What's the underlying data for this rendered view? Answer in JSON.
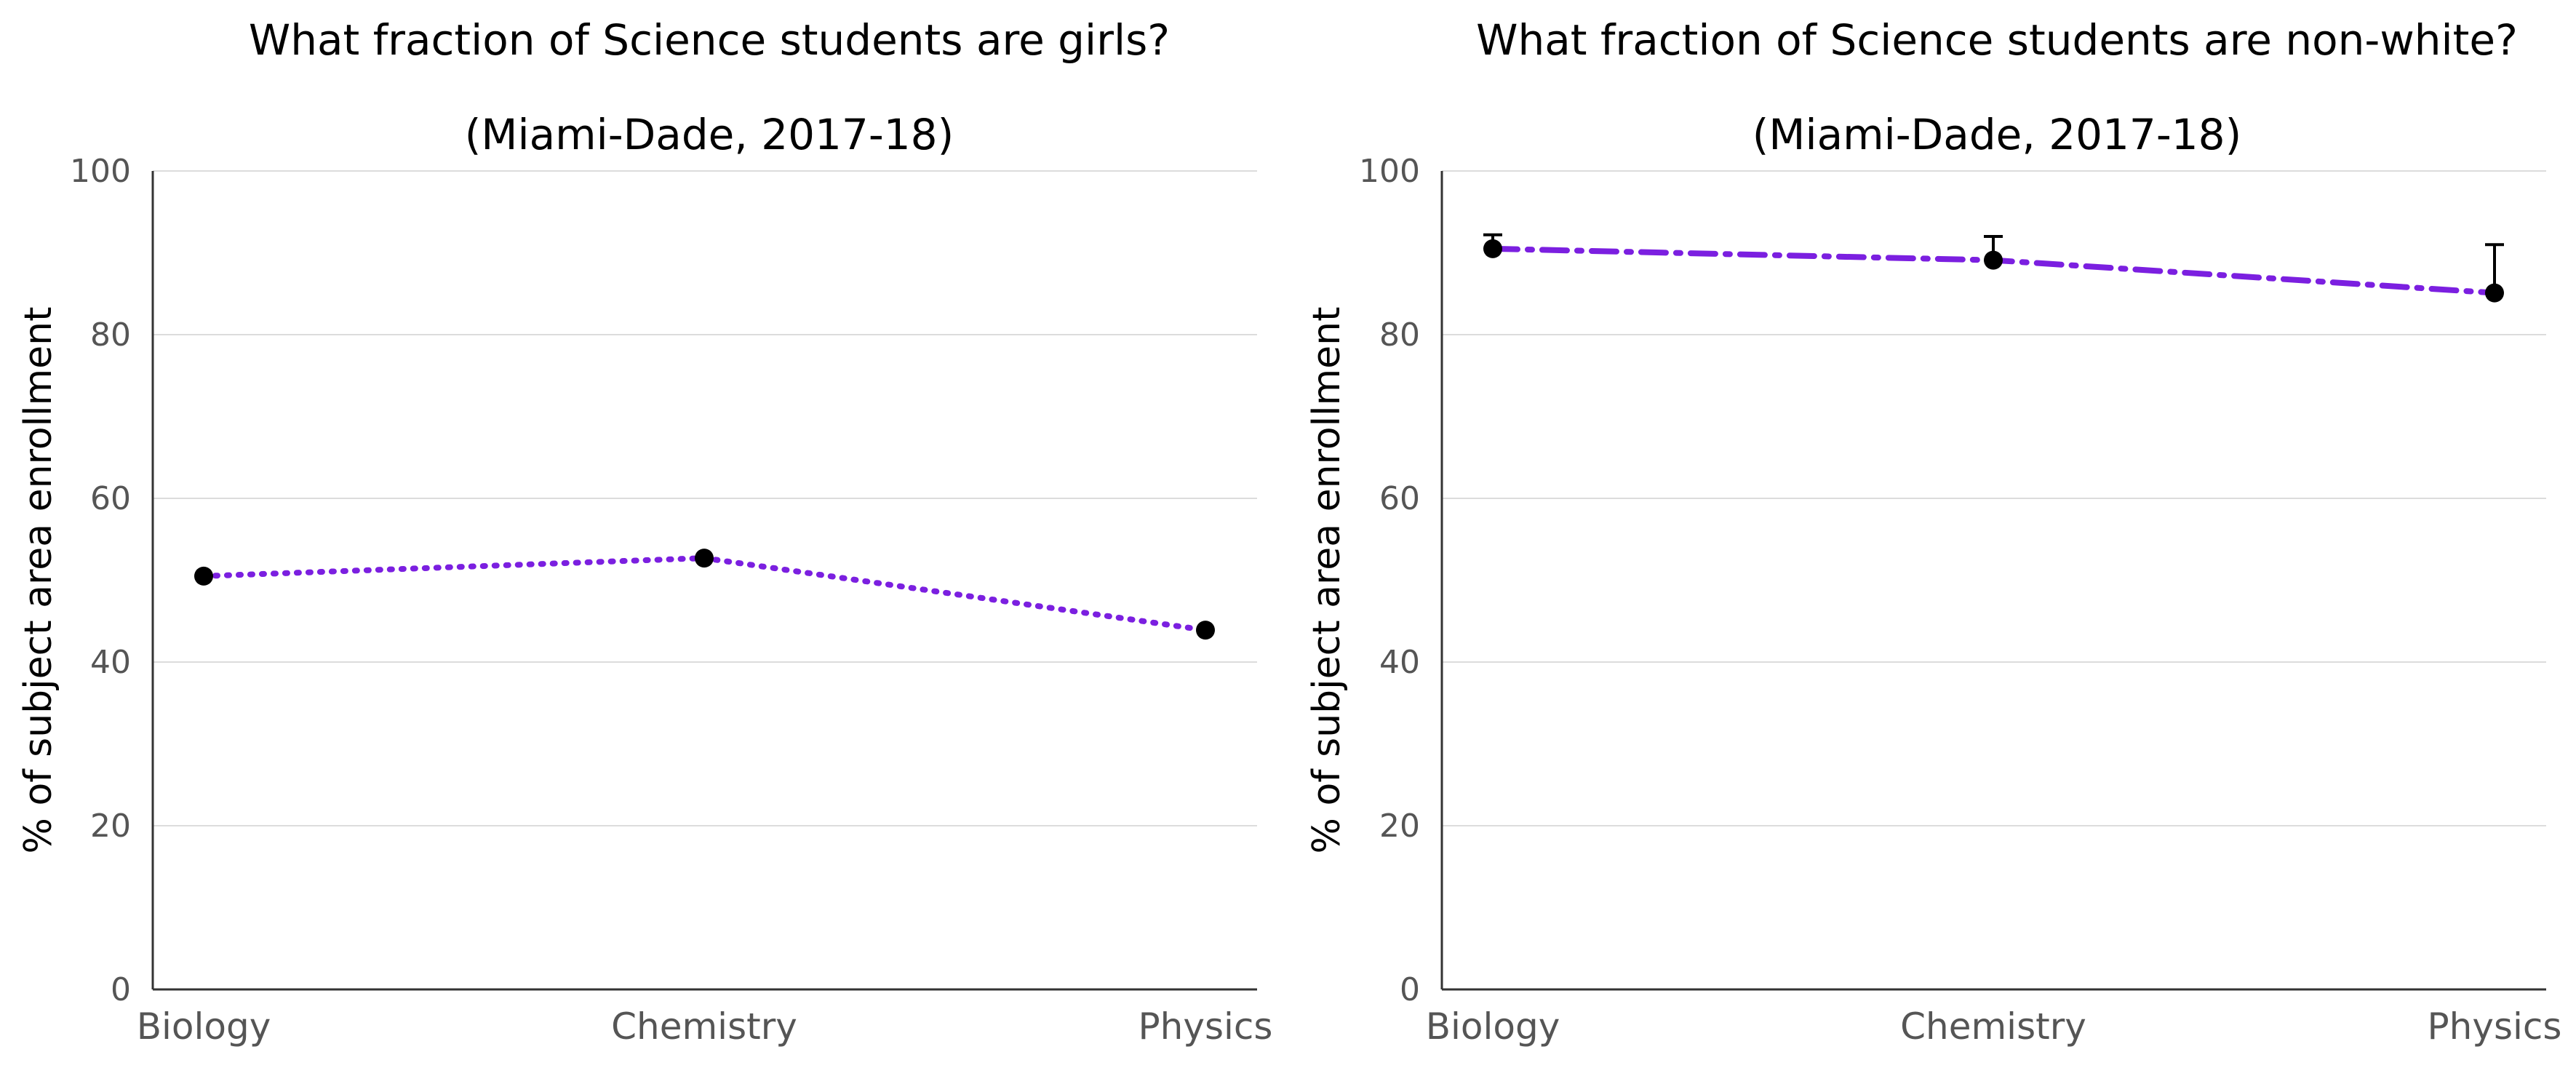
{
  "chart_data": [
    {
      "type": "line",
      "title": "What fraction of Science students are girls?",
      "subtitle": "(Miami-Dade, 2017-18)",
      "xlabel": "",
      "ylabel": "% of subject area enrollment",
      "categories": [
        "Biology",
        "Chemistry",
        "Physics"
      ],
      "ylim": [
        0,
        100
      ],
      "yticks": [
        0,
        20,
        40,
        60,
        80,
        100
      ],
      "grid": true,
      "line_style": "dotted",
      "color": "#7b1fe0",
      "marker_color": "#000000",
      "series": [
        {
          "values": [
            50.5,
            52.7,
            43.9
          ]
        }
      ]
    },
    {
      "type": "line",
      "title": "What fraction of Science students are non-white?",
      "subtitle": "(Miami-Dade, 2017-18)",
      "xlabel": "",
      "ylabel": "% of subject area enrollment",
      "categories": [
        "Biology",
        "Chemistry",
        "Physics"
      ],
      "ylim": [
        0,
        100
      ],
      "yticks": [
        0,
        20,
        40,
        60,
        80,
        100
      ],
      "grid": true,
      "line_style": "dashdot",
      "color": "#7b1fe0",
      "marker_color": "#000000",
      "series": [
        {
          "values": [
            90.5,
            89.1,
            85.1
          ],
          "error_upper": [
            92.2,
            92.0,
            91.0
          ]
        }
      ]
    }
  ]
}
